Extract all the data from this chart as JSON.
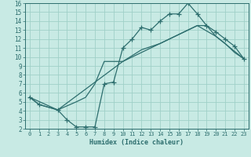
{
  "xlabel": "Humidex (Indice chaleur)",
  "bg_color": "#c8eae4",
  "grid_color": "#a0d0c8",
  "line_color": "#2d6e6e",
  "xlim": [
    -0.5,
    23.5
  ],
  "ylim": [
    2,
    16
  ],
  "xticks": [
    0,
    1,
    2,
    3,
    4,
    5,
    6,
    7,
    8,
    9,
    10,
    11,
    12,
    13,
    14,
    15,
    16,
    17,
    18,
    19,
    20,
    21,
    22,
    23
  ],
  "yticks": [
    2,
    3,
    4,
    5,
    6,
    7,
    8,
    9,
    10,
    11,
    12,
    13,
    14,
    15,
    16
  ],
  "line1_x": [
    0,
    1,
    3,
    4,
    5,
    6,
    7,
    8,
    9,
    10,
    11,
    12,
    13,
    14,
    15,
    16,
    17,
    18,
    19,
    20,
    21,
    22,
    23
  ],
  "line1_y": [
    5.5,
    4.7,
    4.1,
    3.0,
    2.2,
    2.2,
    2.2,
    7.0,
    7.2,
    11.0,
    12.0,
    13.3,
    13.0,
    14.0,
    14.8,
    14.8,
    16.0,
    14.8,
    13.5,
    12.8,
    12.0,
    11.2,
    9.8
  ],
  "line2_x": [
    0,
    1,
    3,
    5,
    6,
    7,
    8,
    10,
    12,
    14,
    16,
    18,
    19,
    20,
    21,
    22,
    23
  ],
  "line2_y": [
    5.5,
    4.7,
    4.1,
    5.0,
    5.5,
    7.0,
    9.5,
    9.5,
    10.8,
    11.5,
    12.5,
    13.5,
    13.5,
    12.3,
    11.5,
    10.5,
    9.8
  ],
  "line3_x": [
    0,
    3,
    10,
    14,
    18,
    20,
    23
  ],
  "line3_y": [
    5.5,
    4.1,
    9.5,
    11.5,
    13.5,
    12.3,
    9.8
  ]
}
